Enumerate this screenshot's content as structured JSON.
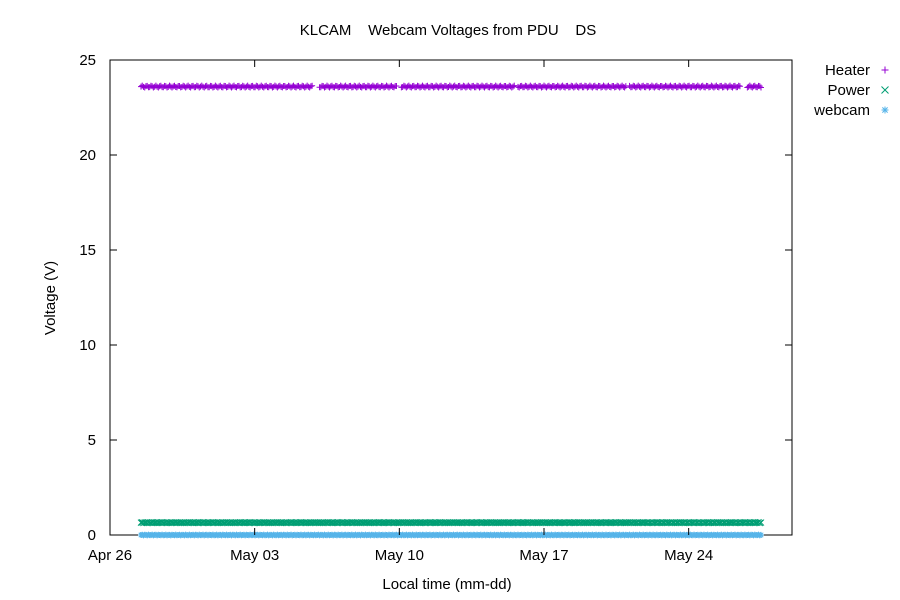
{
  "chart_data": {
    "type": "scatter",
    "title": "KLCAM    Webcam Voltages from PDU    DS",
    "xlabel": "Local time (mm-dd)",
    "ylabel": "Voltage (V)",
    "x_ticks": [
      "Apr 26",
      "May 03",
      "May 10",
      "May 17",
      "May 24"
    ],
    "x_tick_days": [
      0,
      7,
      14,
      21,
      28
    ],
    "xlim_days": [
      0,
      33
    ],
    "y_ticks": [
      "0",
      "5",
      "10",
      "15",
      "20",
      "25"
    ],
    "ylim": [
      0,
      25
    ],
    "grid": false,
    "legend": "outside-top-right",
    "series": [
      {
        "name": "Heater",
        "marker": "plus",
        "color": "#9400d3",
        "approx_value": 23.6,
        "x_range_days": [
          1.5,
          31.5
        ],
        "gaps_days": [
          [
            9.8,
            10.1
          ],
          [
            13.9,
            14.1
          ],
          [
            19.6,
            19.7
          ],
          [
            25.0,
            25.1
          ],
          [
            30.5,
            30.8
          ]
        ]
      },
      {
        "name": "Power",
        "marker": "cross",
        "color": "#009e73",
        "approx_value": 0.65,
        "x_range_days": [
          1.5,
          31.5
        ],
        "gaps_days": []
      },
      {
        "name": "webcam",
        "marker": "star",
        "color": "#56b4e9",
        "approx_value": 0.0,
        "x_range_days": [
          1.5,
          31.5
        ],
        "gaps_days": []
      }
    ]
  }
}
